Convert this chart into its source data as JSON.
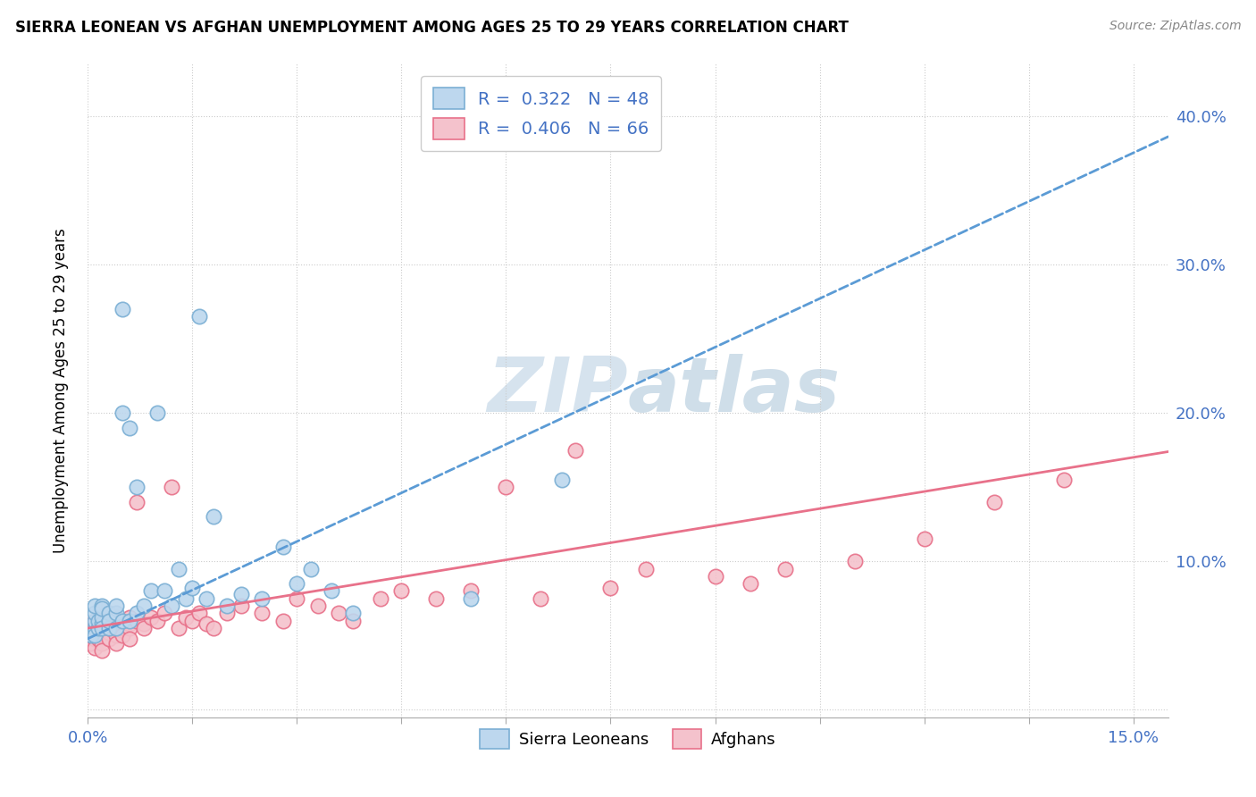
{
  "title": "SIERRA LEONEAN VS AFGHAN UNEMPLOYMENT AMONG AGES 25 TO 29 YEARS CORRELATION CHART",
  "source": "Source: ZipAtlas.com",
  "ylabel": "Unemployment Among Ages 25 to 29 years",
  "legend_r_blue": "R =  0.322",
  "legend_n_blue": "N = 48",
  "legend_r_pink": "R =  0.406",
  "legend_n_pink": "N = 66",
  "legend_label_blue": "Sierra Leoneans",
  "legend_label_pink": "Afghans",
  "blue_scatter_face": "#BDD7EE",
  "blue_scatter_edge": "#7BAFD4",
  "pink_scatter_face": "#F4C2CC",
  "pink_scatter_edge": "#E8718A",
  "trend_blue_color": "#5B9BD5",
  "trend_pink_color": "#E8718A",
  "watermark_color": "#D0E4F0",
  "xlim": [
    0.0,
    0.155
  ],
  "ylim": [
    -0.005,
    0.435
  ],
  "yticks": [
    0.0,
    0.1,
    0.2,
    0.3,
    0.4
  ],
  "ytick_labels": [
    "",
    "10.0%",
    "20.0%",
    "30.0%",
    "40.0%"
  ],
  "sierra_x": [
    0.0005,
    0.001,
    0.001,
    0.001,
    0.001,
    0.001,
    0.0015,
    0.0015,
    0.002,
    0.002,
    0.002,
    0.002,
    0.002,
    0.003,
    0.003,
    0.003,
    0.003,
    0.004,
    0.004,
    0.004,
    0.005,
    0.005,
    0.005,
    0.006,
    0.006,
    0.007,
    0.007,
    0.008,
    0.009,
    0.01,
    0.011,
    0.012,
    0.013,
    0.014,
    0.015,
    0.016,
    0.017,
    0.018,
    0.02,
    0.022,
    0.025,
    0.028,
    0.03,
    0.032,
    0.035,
    0.038,
    0.055,
    0.068
  ],
  "sierra_y": [
    0.05,
    0.055,
    0.06,
    0.065,
    0.07,
    0.05,
    0.055,
    0.06,
    0.058,
    0.062,
    0.07,
    0.068,
    0.055,
    0.06,
    0.065,
    0.055,
    0.06,
    0.065,
    0.07,
    0.055,
    0.06,
    0.2,
    0.27,
    0.06,
    0.19,
    0.065,
    0.15,
    0.07,
    0.08,
    0.2,
    0.08,
    0.07,
    0.095,
    0.075,
    0.082,
    0.265,
    0.075,
    0.13,
    0.07,
    0.078,
    0.075,
    0.11,
    0.085,
    0.095,
    0.08,
    0.065,
    0.075,
    0.155
  ],
  "afghan_x": [
    0.0003,
    0.0005,
    0.001,
    0.001,
    0.001,
    0.001,
    0.0015,
    0.0015,
    0.002,
    0.002,
    0.002,
    0.002,
    0.002,
    0.003,
    0.003,
    0.003,
    0.003,
    0.004,
    0.004,
    0.004,
    0.004,
    0.005,
    0.005,
    0.005,
    0.006,
    0.006,
    0.006,
    0.006,
    0.007,
    0.007,
    0.008,
    0.008,
    0.009,
    0.01,
    0.011,
    0.012,
    0.013,
    0.014,
    0.015,
    0.016,
    0.017,
    0.018,
    0.02,
    0.022,
    0.025,
    0.028,
    0.03,
    0.033,
    0.036,
    0.038,
    0.042,
    0.045,
    0.05,
    0.055,
    0.06,
    0.065,
    0.07,
    0.075,
    0.08,
    0.09,
    0.095,
    0.1,
    0.11,
    0.12,
    0.13,
    0.14
  ],
  "afghan_y": [
    0.045,
    0.05,
    0.055,
    0.06,
    0.048,
    0.042,
    0.052,
    0.048,
    0.06,
    0.055,
    0.05,
    0.045,
    0.04,
    0.058,
    0.052,
    0.048,
    0.055,
    0.062,
    0.058,
    0.05,
    0.045,
    0.06,
    0.055,
    0.05,
    0.062,
    0.058,
    0.055,
    0.048,
    0.06,
    0.14,
    0.058,
    0.055,
    0.062,
    0.06,
    0.065,
    0.15,
    0.055,
    0.062,
    0.06,
    0.065,
    0.058,
    0.055,
    0.065,
    0.07,
    0.065,
    0.06,
    0.075,
    0.07,
    0.065,
    0.06,
    0.075,
    0.08,
    0.075,
    0.08,
    0.15,
    0.075,
    0.175,
    0.082,
    0.095,
    0.09,
    0.085,
    0.095,
    0.1,
    0.115,
    0.14,
    0.155
  ]
}
